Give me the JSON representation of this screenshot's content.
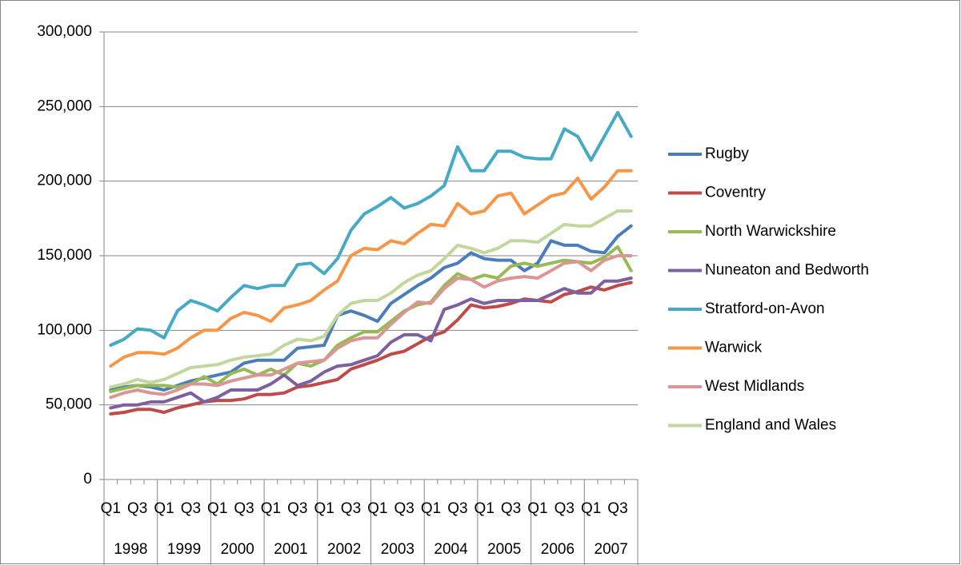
{
  "chart_data": {
    "type": "line",
    "categories": [
      "Q1",
      null,
      "Q3",
      null,
      "Q1",
      null,
      "Q3",
      null,
      "Q1",
      null,
      "Q3",
      null,
      "Q1",
      null,
      "Q3",
      null,
      "Q1",
      null,
      "Q3",
      null,
      "Q1",
      null,
      "Q3",
      null,
      "Q1",
      null,
      "Q3",
      null,
      "Q1",
      null,
      "Q3",
      null,
      "Q1",
      null,
      "Q3",
      null,
      "Q1",
      null,
      "Q3",
      null
    ],
    "category_groups": [
      "1998",
      "1999",
      "2000",
      "2001",
      "2002",
      "2003",
      "2004",
      "2005",
      "2006",
      "2007"
    ],
    "series": [
      {
        "name": "Rugby",
        "color": "#4a7ebb",
        "values": [
          60,
          62,
          63,
          62,
          60,
          63,
          66,
          68,
          70,
          72,
          78,
          80,
          80,
          80,
          88,
          89,
          90,
          110,
          113,
          110,
          106,
          118,
          124,
          130,
          135,
          142,
          145,
          152,
          148,
          147,
          147,
          140,
          145,
          160,
          157,
          157,
          153,
          152,
          163,
          170
        ]
      },
      {
        "name": "Coventry",
        "color": "#be4b48",
        "values": [
          44,
          45,
          47,
          47,
          45,
          48,
          50,
          52,
          53,
          53,
          54,
          57,
          57,
          58,
          62,
          63,
          65,
          67,
          74,
          77,
          80,
          84,
          86,
          91,
          96,
          99,
          107,
          117,
          115,
          116,
          118,
          121,
          120,
          119,
          124,
          126,
          129,
          127,
          130,
          132
        ]
      },
      {
        "name": "North Warwickshire",
        "color": "#98b954",
        "values": [
          59,
          61,
          63,
          63,
          63,
          62,
          64,
          69,
          64,
          71,
          74,
          70,
          74,
          70,
          78,
          76,
          80,
          90,
          95,
          99,
          99,
          106,
          113,
          117,
          119,
          130,
          138,
          134,
          137,
          135,
          143,
          145,
          143,
          145,
          147,
          146,
          145,
          149,
          156,
          140
        ]
      },
      {
        "name": "Nuneaton and Bedworth",
        "color": "#7d60a0",
        "values": [
          48,
          50,
          50,
          52,
          52,
          55,
          58,
          52,
          55,
          60,
          60,
          60,
          64,
          70,
          63,
          66,
          72,
          76,
          77,
          80,
          83,
          92,
          97,
          97,
          93,
          114,
          117,
          121,
          118,
          120,
          120,
          120,
          120,
          124,
          128,
          125,
          125,
          133,
          133,
          135
        ]
      },
      {
        "name": "Stratford-on-Avon",
        "color": "#46aac5",
        "values": [
          90,
          94,
          101,
          100,
          95,
          113,
          120,
          117,
          113,
          122,
          130,
          128,
          130,
          130,
          144,
          145,
          138,
          148,
          167,
          178,
          183,
          189,
          182,
          185,
          190,
          197,
          223,
          207,
          207,
          220,
          220,
          216,
          215,
          215,
          235,
          230,
          214,
          230,
          246,
          230
        ]
      },
      {
        "name": "Warwick",
        "color": "#f79646",
        "values": [
          76,
          82,
          85,
          85,
          84,
          88,
          95,
          100,
          100,
          108,
          112,
          110,
          106,
          115,
          117,
          120,
          127,
          133,
          150,
          155,
          154,
          160,
          158,
          165,
          171,
          170,
          185,
          178,
          180,
          190,
          192,
          178,
          184,
          190,
          192,
          202,
          188,
          196,
          207,
          207
        ]
      },
      {
        "name": "West Midlands",
        "color": "#d99694",
        "values": [
          55,
          58,
          60,
          58,
          57,
          60,
          64,
          64,
          63,
          66,
          68,
          70,
          70,
          74,
          78,
          79,
          80,
          88,
          93,
          95,
          95,
          104,
          112,
          119,
          118,
          128,
          135,
          134,
          129,
          133,
          135,
          136,
          135,
          140,
          145,
          146,
          140,
          147,
          150,
          150
        ]
      },
      {
        "name": "England and Wales",
        "color": "#c3d69b",
        "values": [
          62,
          64,
          67,
          65,
          67,
          71,
          75,
          76,
          77,
          80,
          82,
          83,
          84,
          90,
          94,
          93,
          96,
          110,
          118,
          120,
          120,
          125,
          132,
          137,
          140,
          148,
          157,
          155,
          152,
          155,
          160,
          160,
          159,
          165,
          171,
          170,
          170,
          175,
          180,
          180
        ]
      }
    ],
    "ylim": [
      0,
      300
    ],
    "yticks": [
      0,
      {
        "value": 50,
        "label": "50,000"
      },
      {
        "value": 100,
        "label": "100,000"
      },
      {
        "value": 150,
        "label": "150,000"
      },
      {
        "value": 200,
        "label": "200,000"
      },
      {
        "value": 250,
        "label": "250,000"
      },
      {
        "value": 300,
        "label": "300,000"
      }
    ],
    "grid": true,
    "legend": "right"
  }
}
